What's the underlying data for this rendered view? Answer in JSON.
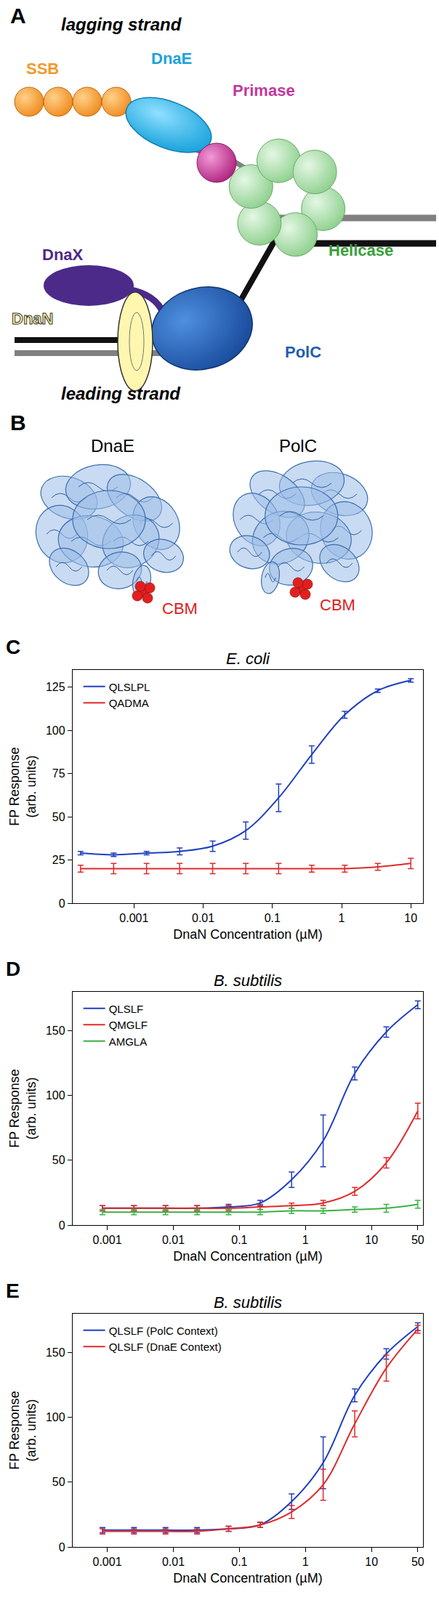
{
  "panel_a": {
    "letter": "A",
    "labels": {
      "lagging": "lagging strand",
      "leading": "leading strand",
      "ssb": "SSB",
      "dnae": "DnaE",
      "primase": "Primase",
      "dnax": "DnaX",
      "helicase": "Helicase",
      "dnan": "DnaN",
      "polc": "PolC"
    }
  },
  "panel_b": {
    "letter": "B",
    "structures": [
      {
        "label": "DnaE",
        "site": "CBM"
      },
      {
        "label": "PolC",
        "site": "CBM"
      }
    ]
  },
  "chart_data": [
    {
      "type": "line",
      "annotations": [
        {
          "text": "C"
        }
      ],
      "title": "E. coli",
      "x_label": "DnaN Concentration (µM)",
      "y_label": "FP Response (arb. units)",
      "log": "x",
      "grid": false,
      "legend": "upper left",
      "x": [
        10,
        3.33,
        1.11,
        0.37,
        0.123,
        0.0412,
        0.0137,
        0.00457,
        0.00152,
        0.000508,
        0.000169
      ],
      "xlim": [
        0.00013,
        15
      ],
      "xticks": [
        0.001,
        0.01,
        0.1,
        1,
        10
      ],
      "ylim": [
        0,
        135
      ],
      "yticks": [
        0,
        25,
        50,
        75,
        100,
        125
      ],
      "series": [
        {
          "name": "QLSLPL",
          "color": "#1f3fbf",
          "values": [
            129,
            123,
            109,
            86,
            61,
            42,
            33,
            30,
            29,
            28,
            29
          ],
          "errors": [
            1,
            1,
            2,
            5,
            8,
            5,
            3,
            2,
            1,
            1,
            1
          ]
        },
        {
          "name": "QADMA",
          "color": "#e02a2a",
          "values": [
            23,
            21,
            20,
            20,
            20,
            20,
            20,
            20,
            20,
            20,
            20
          ],
          "errors": [
            3,
            2,
            2,
            2,
            3,
            3,
            3,
            3,
            3,
            3,
            2
          ]
        }
      ]
    },
    {
      "type": "line",
      "annotations": [
        {
          "text": "D"
        }
      ],
      "title": "B. subtilis",
      "x_label": "DnaN Concentration (µM)",
      "y_label": "FP Response (arb. units)",
      "log": "x",
      "grid": false,
      "legend": "upper left",
      "x": [
        50,
        16.7,
        5.56,
        1.85,
        0.617,
        0.206,
        0.0686,
        0.0229,
        0.00762,
        0.00254,
        0.000847
      ],
      "xlim": [
        0.0003,
        60
      ],
      "xticks": [
        0.001,
        0.01,
        0.1,
        1,
        10,
        50
      ],
      "ylim": [
        0,
        180
      ],
      "yticks": [
        0,
        50,
        100,
        150
      ],
      "series": [
        {
          "name": "QLSLF",
          "color": "#1f3fbf",
          "values": [
            170,
            149,
            117,
            65,
            35,
            17,
            14,
            13,
            13,
            13,
            13
          ],
          "errors": [
            3,
            4,
            5,
            20,
            6,
            2,
            2,
            2,
            2,
            2,
            2
          ]
        },
        {
          "name": "QMGLF",
          "color": "#e02a2a",
          "values": [
            88,
            48,
            26,
            17,
            15,
            14,
            13,
            13,
            13,
            13,
            13
          ],
          "errors": [
            6,
            4,
            3,
            2,
            2,
            2,
            2,
            2,
            2,
            2,
            2
          ]
        },
        {
          "name": "AMGLA",
          "color": "#3cb043",
          "values": [
            16,
            13,
            12,
            11,
            11,
            10,
            10,
            10,
            10,
            10,
            10
          ],
          "errors": [
            3,
            3,
            2,
            2,
            2,
            2,
            2,
            2,
            2,
            2,
            2
          ]
        }
      ]
    },
    {
      "type": "line",
      "annotations": [
        {
          "text": "E"
        }
      ],
      "title": "B. subtilis",
      "x_label": "DnaN Concentration (µM)",
      "y_label": "FP Response (arb. units)",
      "log": "x",
      "grid": false,
      "legend": "upper left",
      "x": [
        50,
        16.7,
        5.56,
        1.85,
        0.617,
        0.206,
        0.0686,
        0.0229,
        0.00762,
        0.00254,
        0.000847
      ],
      "xlim": [
        0.0003,
        60
      ],
      "xticks": [
        0.001,
        0.01,
        0.1,
        1,
        10,
        50
      ],
      "ylim": [
        0,
        180
      ],
      "yticks": [
        0,
        50,
        100,
        150
      ],
      "series": [
        {
          "name": "QLSLF (PolC Context)",
          "color": "#1f3fbf",
          "values": [
            170,
            149,
            117,
            65,
            35,
            17,
            14,
            13,
            13,
            13,
            13
          ],
          "errors": [
            3,
            4,
            5,
            20,
            6,
            2,
            2,
            2,
            2,
            2,
            2
          ]
        },
        {
          "name": "QLSLF (DnaE Context)",
          "color": "#e02a2a",
          "values": [
            168,
            138,
            95,
            48,
            27,
            17,
            14,
            12,
            12,
            12,
            12
          ],
          "errors": [
            3,
            10,
            10,
            12,
            5,
            2,
            2,
            2,
            2,
            2,
            2
          ]
        }
      ]
    }
  ]
}
